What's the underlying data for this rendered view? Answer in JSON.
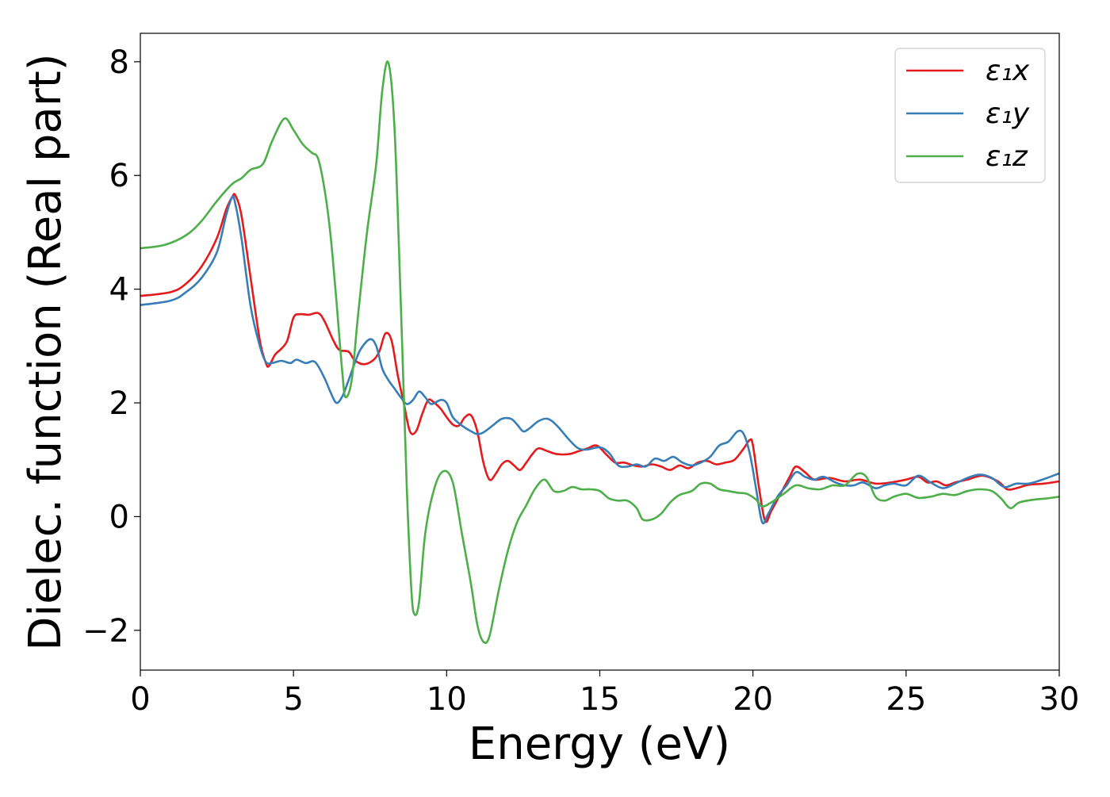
{
  "chart_data": {
    "type": "line",
    "title": "",
    "xlabel": "Energy (eV)",
    "ylabel": "Dielec. function (Real part)",
    "xlim": [
      0,
      30
    ],
    "ylim": [
      -2.7,
      8.5
    ],
    "xticks": [
      0,
      5,
      10,
      15,
      20,
      25,
      30
    ],
    "xtick_labels": [
      "0",
      "5",
      "10",
      "15",
      "20",
      "25",
      "30"
    ],
    "yticks": [
      -2,
      0,
      2,
      4,
      6,
      8
    ],
    "ytick_labels": [
      "−2",
      "0",
      "2",
      "4",
      "6",
      "8"
    ],
    "grid": false,
    "legend": {
      "position": "top-right"
    },
    "series": [
      {
        "name": "ε₁x",
        "color": "#e41a1c",
        "points": [
          [
            0,
            3.88
          ],
          [
            1,
            3.95
          ],
          [
            1.5,
            4.1
          ],
          [
            2,
            4.4
          ],
          [
            2.5,
            4.9
          ],
          [
            2.8,
            5.4
          ],
          [
            3.0,
            5.62
          ],
          [
            3.1,
            5.65
          ],
          [
            3.3,
            5.3
          ],
          [
            3.6,
            4.2
          ],
          [
            3.9,
            3.1
          ],
          [
            4.1,
            2.7
          ],
          [
            4.2,
            2.65
          ],
          [
            4.4,
            2.85
          ],
          [
            4.6,
            2.95
          ],
          [
            4.8,
            3.1
          ],
          [
            5.0,
            3.5
          ],
          [
            5.2,
            3.56
          ],
          [
            5.5,
            3.55
          ],
          [
            5.8,
            3.58
          ],
          [
            6.0,
            3.45
          ],
          [
            6.3,
            3.1
          ],
          [
            6.5,
            2.93
          ],
          [
            6.8,
            2.9
          ],
          [
            7.0,
            2.75
          ],
          [
            7.3,
            2.68
          ],
          [
            7.6,
            2.75
          ],
          [
            7.8,
            2.9
          ],
          [
            8.0,
            3.22
          ],
          [
            8.2,
            3.1
          ],
          [
            8.4,
            2.5
          ],
          [
            8.6,
            2.0
          ],
          [
            8.8,
            1.5
          ],
          [
            9.0,
            1.5
          ],
          [
            9.2,
            1.8
          ],
          [
            9.4,
            2.05
          ],
          [
            9.6,
            2.0
          ],
          [
            9.8,
            1.9
          ],
          [
            10.0,
            1.75
          ],
          [
            10.2,
            1.62
          ],
          [
            10.4,
            1.6
          ],
          [
            10.6,
            1.75
          ],
          [
            10.8,
            1.78
          ],
          [
            11.0,
            1.5
          ],
          [
            11.2,
            0.95
          ],
          [
            11.4,
            0.65
          ],
          [
            11.6,
            0.75
          ],
          [
            11.8,
            0.92
          ],
          [
            12.0,
            0.98
          ],
          [
            12.2,
            0.9
          ],
          [
            12.4,
            0.82
          ],
          [
            12.6,
            0.95
          ],
          [
            12.8,
            1.1
          ],
          [
            13.0,
            1.2
          ],
          [
            13.3,
            1.15
          ],
          [
            13.6,
            1.1
          ],
          [
            14.0,
            1.1
          ],
          [
            14.3,
            1.15
          ],
          [
            14.6,
            1.2
          ],
          [
            14.9,
            1.25
          ],
          [
            15.2,
            1.1
          ],
          [
            15.5,
            0.95
          ],
          [
            15.8,
            0.95
          ],
          [
            16.1,
            0.9
          ],
          [
            16.4,
            0.88
          ],
          [
            16.7,
            0.92
          ],
          [
            17.0,
            0.88
          ],
          [
            17.3,
            0.82
          ],
          [
            17.6,
            0.9
          ],
          [
            17.9,
            0.85
          ],
          [
            18.2,
            0.95
          ],
          [
            18.5,
            0.98
          ],
          [
            18.8,
            0.92
          ],
          [
            19.1,
            0.95
          ],
          [
            19.4,
            1.0
          ],
          [
            19.7,
            1.2
          ],
          [
            19.9,
            1.35
          ],
          [
            20.0,
            1.25
          ],
          [
            20.2,
            0.5
          ],
          [
            20.4,
            -0.08
          ],
          [
            20.6,
            0.1
          ],
          [
            20.9,
            0.4
          ],
          [
            21.2,
            0.7
          ],
          [
            21.4,
            0.88
          ],
          [
            21.7,
            0.78
          ],
          [
            22.0,
            0.65
          ],
          [
            22.5,
            0.68
          ],
          [
            23.0,
            0.62
          ],
          [
            23.5,
            0.65
          ],
          [
            24.0,
            0.58
          ],
          [
            24.5,
            0.6
          ],
          [
            25.0,
            0.65
          ],
          [
            25.4,
            0.7
          ],
          [
            25.7,
            0.6
          ],
          [
            26.0,
            0.62
          ],
          [
            26.3,
            0.55
          ],
          [
            26.6,
            0.6
          ],
          [
            27.0,
            0.65
          ],
          [
            27.5,
            0.72
          ],
          [
            28.0,
            0.62
          ],
          [
            28.3,
            0.48
          ],
          [
            28.6,
            0.5
          ],
          [
            29.0,
            0.56
          ],
          [
            29.5,
            0.58
          ],
          [
            30.0,
            0.62
          ]
        ]
      },
      {
        "name": "ε₁y",
        "color": "#377eb8",
        "points": [
          [
            0,
            3.72
          ],
          [
            1,
            3.8
          ],
          [
            1.5,
            3.95
          ],
          [
            2,
            4.2
          ],
          [
            2.5,
            4.65
          ],
          [
            2.8,
            5.3
          ],
          [
            3.0,
            5.62
          ],
          [
            3.1,
            5.5
          ],
          [
            3.3,
            4.9
          ],
          [
            3.6,
            3.7
          ],
          [
            3.9,
            3.0
          ],
          [
            4.1,
            2.72
          ],
          [
            4.3,
            2.7
          ],
          [
            4.6,
            2.74
          ],
          [
            4.9,
            2.7
          ],
          [
            5.1,
            2.76
          ],
          [
            5.4,
            2.7
          ],
          [
            5.7,
            2.72
          ],
          [
            6.0,
            2.45
          ],
          [
            6.2,
            2.2
          ],
          [
            6.4,
            2.0
          ],
          [
            6.6,
            2.12
          ],
          [
            6.8,
            2.4
          ],
          [
            7.0,
            2.7
          ],
          [
            7.2,
            2.95
          ],
          [
            7.5,
            3.12
          ],
          [
            7.7,
            3.0
          ],
          [
            7.9,
            2.6
          ],
          [
            8.1,
            2.4
          ],
          [
            8.3,
            2.25
          ],
          [
            8.5,
            2.1
          ],
          [
            8.7,
            1.98
          ],
          [
            8.9,
            2.05
          ],
          [
            9.1,
            2.2
          ],
          [
            9.3,
            2.1
          ],
          [
            9.5,
            1.98
          ],
          [
            9.8,
            2.05
          ],
          [
            10.0,
            2.0
          ],
          [
            10.2,
            1.75
          ],
          [
            10.5,
            1.6
          ],
          [
            10.8,
            1.5
          ],
          [
            11.0,
            1.45
          ],
          [
            11.2,
            1.48
          ],
          [
            11.5,
            1.6
          ],
          [
            11.8,
            1.72
          ],
          [
            12.1,
            1.72
          ],
          [
            12.3,
            1.62
          ],
          [
            12.5,
            1.5
          ],
          [
            12.7,
            1.55
          ],
          [
            13.0,
            1.68
          ],
          [
            13.3,
            1.72
          ],
          [
            13.6,
            1.6
          ],
          [
            14.0,
            1.35
          ],
          [
            14.3,
            1.2
          ],
          [
            14.6,
            1.18
          ],
          [
            15.0,
            1.22
          ],
          [
            15.3,
            1.12
          ],
          [
            15.6,
            0.9
          ],
          [
            15.9,
            0.88
          ],
          [
            16.2,
            0.92
          ],
          [
            16.5,
            0.88
          ],
          [
            16.8,
            1.02
          ],
          [
            17.1,
            0.98
          ],
          [
            17.4,
            1.05
          ],
          [
            17.7,
            0.95
          ],
          [
            18.0,
            0.9
          ],
          [
            18.3,
            0.95
          ],
          [
            18.6,
            1.05
          ],
          [
            18.9,
            1.25
          ],
          [
            19.2,
            1.32
          ],
          [
            19.5,
            1.5
          ],
          [
            19.7,
            1.45
          ],
          [
            19.9,
            1.1
          ],
          [
            20.1,
            0.5
          ],
          [
            20.3,
            -0.1
          ],
          [
            20.5,
            0.05
          ],
          [
            20.8,
            0.35
          ],
          [
            21.1,
            0.55
          ],
          [
            21.4,
            0.78
          ],
          [
            21.7,
            0.7
          ],
          [
            22.0,
            0.65
          ],
          [
            22.3,
            0.7
          ],
          [
            22.7,
            0.6
          ],
          [
            23.0,
            0.55
          ],
          [
            23.3,
            0.55
          ],
          [
            23.6,
            0.6
          ],
          [
            24.0,
            0.5
          ],
          [
            24.3,
            0.55
          ],
          [
            24.6,
            0.58
          ],
          [
            25.0,
            0.55
          ],
          [
            25.4,
            0.72
          ],
          [
            25.8,
            0.6
          ],
          [
            26.2,
            0.5
          ],
          [
            26.6,
            0.58
          ],
          [
            27.0,
            0.68
          ],
          [
            27.4,
            0.74
          ],
          [
            27.8,
            0.68
          ],
          [
            28.2,
            0.52
          ],
          [
            28.6,
            0.58
          ],
          [
            29.0,
            0.58
          ],
          [
            29.5,
            0.66
          ],
          [
            30.0,
            0.76
          ]
        ]
      },
      {
        "name": "ε₁z",
        "color": "#4daf4a",
        "points": [
          [
            0,
            4.72
          ],
          [
            0.8,
            4.78
          ],
          [
            1.5,
            4.95
          ],
          [
            2.0,
            5.2
          ],
          [
            2.5,
            5.55
          ],
          [
            3.0,
            5.85
          ],
          [
            3.3,
            5.95
          ],
          [
            3.6,
            6.1
          ],
          [
            4.0,
            6.2
          ],
          [
            4.3,
            6.6
          ],
          [
            4.7,
            7.0
          ],
          [
            5.0,
            6.8
          ],
          [
            5.3,
            6.55
          ],
          [
            5.6,
            6.4
          ],
          [
            5.8,
            6.3
          ],
          [
            6.0,
            5.8
          ],
          [
            6.2,
            5.0
          ],
          [
            6.4,
            3.8
          ],
          [
            6.6,
            2.5
          ],
          [
            6.7,
            2.1
          ],
          [
            6.9,
            2.4
          ],
          [
            7.1,
            3.5
          ],
          [
            7.4,
            5.0
          ],
          [
            7.7,
            6.2
          ],
          [
            7.9,
            7.5
          ],
          [
            8.1,
            7.98
          ],
          [
            8.3,
            6.8
          ],
          [
            8.5,
            3.8
          ],
          [
            8.7,
            0.5
          ],
          [
            8.85,
            -1.3
          ],
          [
            8.95,
            -1.72
          ],
          [
            9.1,
            -1.5
          ],
          [
            9.3,
            -0.3
          ],
          [
            9.6,
            0.5
          ],
          [
            9.9,
            0.8
          ],
          [
            10.2,
            0.6
          ],
          [
            10.5,
            -0.3
          ],
          [
            10.8,
            -1.2
          ],
          [
            11.0,
            -1.9
          ],
          [
            11.2,
            -2.2
          ],
          [
            11.4,
            -2.1
          ],
          [
            11.7,
            -1.3
          ],
          [
            12.0,
            -0.6
          ],
          [
            12.3,
            -0.1
          ],
          [
            12.6,
            0.2
          ],
          [
            12.9,
            0.5
          ],
          [
            13.2,
            0.65
          ],
          [
            13.5,
            0.45
          ],
          [
            13.8,
            0.45
          ],
          [
            14.1,
            0.52
          ],
          [
            14.4,
            0.48
          ],
          [
            14.7,
            0.48
          ],
          [
            15.0,
            0.45
          ],
          [
            15.3,
            0.32
          ],
          [
            15.6,
            0.28
          ],
          [
            15.9,
            0.28
          ],
          [
            16.2,
            0.15
          ],
          [
            16.4,
            -0.05
          ],
          [
            16.7,
            -0.05
          ],
          [
            17.0,
            0.05
          ],
          [
            17.3,
            0.25
          ],
          [
            17.6,
            0.38
          ],
          [
            18.0,
            0.45
          ],
          [
            18.3,
            0.58
          ],
          [
            18.6,
            0.58
          ],
          [
            18.9,
            0.48
          ],
          [
            19.2,
            0.45
          ],
          [
            19.5,
            0.42
          ],
          [
            19.8,
            0.4
          ],
          [
            20.1,
            0.3
          ],
          [
            20.3,
            0.18
          ],
          [
            20.6,
            0.25
          ],
          [
            21.0,
            0.4
          ],
          [
            21.4,
            0.55
          ],
          [
            21.8,
            0.5
          ],
          [
            22.2,
            0.48
          ],
          [
            22.6,
            0.55
          ],
          [
            23.0,
            0.55
          ],
          [
            23.4,
            0.75
          ],
          [
            23.7,
            0.7
          ],
          [
            24.0,
            0.35
          ],
          [
            24.3,
            0.28
          ],
          [
            24.6,
            0.35
          ],
          [
            25.0,
            0.4
          ],
          [
            25.4,
            0.33
          ],
          [
            25.8,
            0.35
          ],
          [
            26.2,
            0.4
          ],
          [
            26.6,
            0.38
          ],
          [
            27.0,
            0.45
          ],
          [
            27.4,
            0.48
          ],
          [
            27.8,
            0.45
          ],
          [
            28.1,
            0.32
          ],
          [
            28.4,
            0.15
          ],
          [
            28.7,
            0.25
          ],
          [
            29.2,
            0.3
          ],
          [
            29.6,
            0.32
          ],
          [
            30.0,
            0.35
          ]
        ]
      }
    ]
  }
}
